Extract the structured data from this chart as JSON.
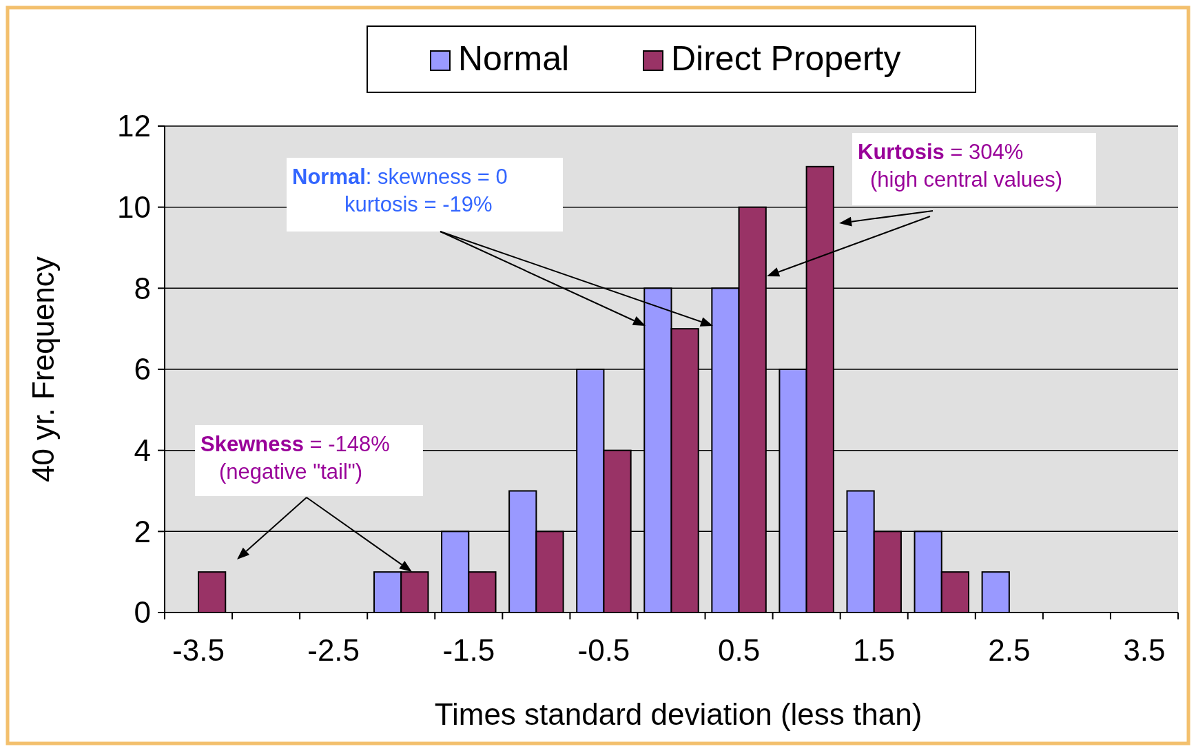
{
  "chart_data": {
    "type": "bar",
    "xlabel": "Times standard deviation  (less than)",
    "ylabel": "40 yr. Frequency",
    "categories": [
      "-3.5",
      null,
      "-2.5",
      null,
      "-1.5",
      null,
      "-0.5",
      null,
      "0.5",
      null,
      "1.5",
      null,
      "2.5",
      null,
      "3.5"
    ],
    "series": [
      {
        "name": "Normal",
        "color": "#9999ff",
        "values": [
          0,
          0,
          0,
          1,
          2,
          3,
          6,
          8,
          8,
          6,
          3,
          2,
          1,
          0,
          0
        ]
      },
      {
        "name": "Direct Property",
        "color": "#993366",
        "values": [
          1,
          0,
          0,
          1,
          1,
          2,
          4,
          7,
          10,
          11,
          2,
          1,
          0,
          0,
          0
        ]
      }
    ],
    "ylim": [
      0,
      12
    ],
    "yticks": [
      0,
      2,
      4,
      6,
      8,
      10,
      12
    ],
    "grid": "y",
    "legend": "top",
    "annotations": [
      "Normal: skewness = 0\nkurtosis = -19%",
      "Kurtosis = 304%\n(high central values)",
      "Skewness = -148%\n(negative \"tail\")"
    ]
  }
}
